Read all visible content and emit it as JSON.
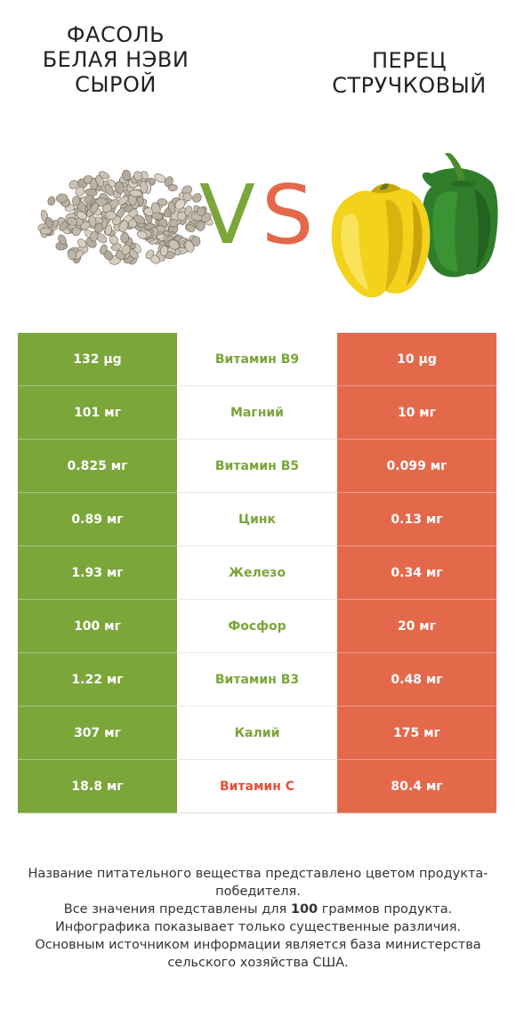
{
  "header": {
    "left_title": "Фасоль\nбелая нэви\nсырой",
    "right_title": "Перец\nстручковый",
    "vs_v": "V",
    "vs_s": "S"
  },
  "colors": {
    "left": "#7aa63a",
    "right": "#e4694b",
    "left_label": "#7aa63a",
    "right_label": "#e0533a"
  },
  "rows": [
    {
      "left": "132 µg",
      "nutrient": "Витамин B9",
      "right": "10 µg",
      "winner": "left"
    },
    {
      "left": "101 мг",
      "nutrient": "Магний",
      "right": "10 мг",
      "winner": "left"
    },
    {
      "left": "0.825 мг",
      "nutrient": "Витамин B5",
      "right": "0.099 мг",
      "winner": "left"
    },
    {
      "left": "0.89 мг",
      "nutrient": "Цинк",
      "right": "0.13 мг",
      "winner": "left"
    },
    {
      "left": "1.93 мг",
      "nutrient": "Железо",
      "right": "0.34 мг",
      "winner": "left"
    },
    {
      "left": "100 мг",
      "nutrient": "Фосфор",
      "right": "20 мг",
      "winner": "left"
    },
    {
      "left": "1.22 мг",
      "nutrient": "Витамин B3",
      "right": "0.48 мг",
      "winner": "left"
    },
    {
      "left": "307 мг",
      "nutrient": "Калий",
      "right": "175 мг",
      "winner": "left"
    },
    {
      "left": "18.8 мг",
      "nutrient": "Витамин C",
      "right": "80.4 мг",
      "winner": "right"
    }
  ],
  "footnote": {
    "line1": "Название питательного вещества представлено цветом продукта-победителя.",
    "line2a": "Все значения представлены для ",
    "line2b": "100",
    "line2c": " граммов продукта.",
    "line3": "Инфографика показывает только существенные различия.",
    "line4": "Основным источником информации является база министерства сельского хозяйства США."
  }
}
